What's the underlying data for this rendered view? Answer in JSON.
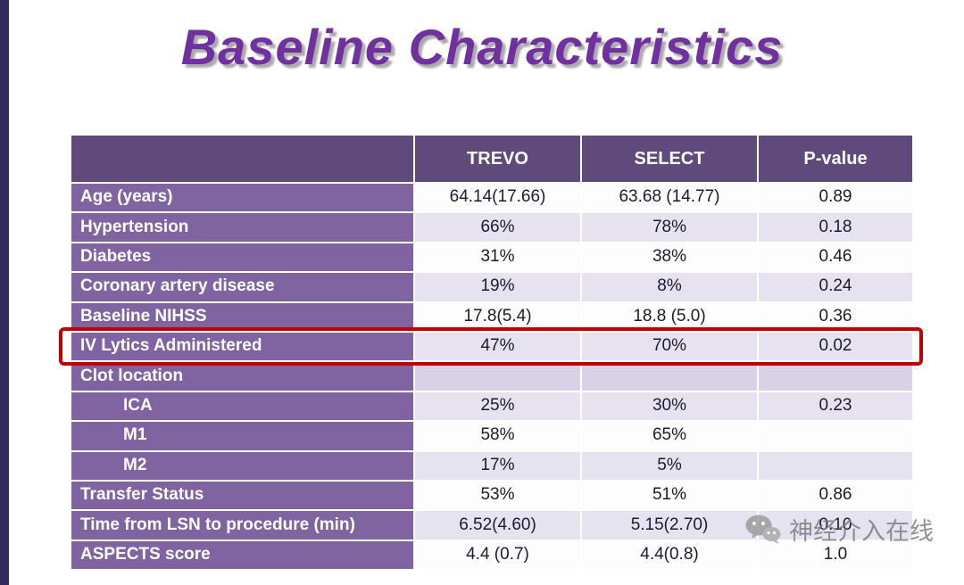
{
  "slide": {
    "title": "Baseline Characteristics"
  },
  "colors": {
    "title": "#7030a0",
    "header_bg": "#604a7b",
    "label_column_bg": "#8064a2",
    "band_row_bg": "#e7e2ef",
    "shaded_row_bg": "#d9d2e6",
    "highlight_border": "#c00000",
    "left_bar": "#352a5e"
  },
  "table": {
    "columns": [
      "",
      "TREVO",
      "SELECT",
      "P-value"
    ],
    "rows": [
      {
        "label": "Age (years)",
        "trevo": "64.14(17.66)",
        "select": "63.68 (14.77)",
        "p": "0.89"
      },
      {
        "label": "Hypertension",
        "trevo": "66%",
        "select": "78%",
        "p": "0.18"
      },
      {
        "label": "Diabetes",
        "trevo": "31%",
        "select": "38%",
        "p": "0.46"
      },
      {
        "label": "Coronary artery disease",
        "trevo": "19%",
        "select": "8%",
        "p": "0.24"
      },
      {
        "label": "Baseline NIHSS",
        "trevo": "17.8(5.4)",
        "select": "18.8 (5.0)",
        "p": "0.36"
      },
      {
        "label": "IV Lytics Administered",
        "trevo": "47%",
        "select": "70%",
        "p": "0.02",
        "highlight": true
      },
      {
        "label": "Clot location",
        "trevo": "",
        "select": "",
        "p": "",
        "shaded": true
      },
      {
        "label": "ICA",
        "trevo": "25%",
        "select": "30%",
        "p": "0.23",
        "indent": true
      },
      {
        "label": "M1",
        "trevo": "58%",
        "select": "65%",
        "p": "",
        "indent": true
      },
      {
        "label": "M2",
        "trevo": "17%",
        "select": "5%",
        "p": "",
        "indent": true
      },
      {
        "label": "Transfer Status",
        "trevo": "53%",
        "select": "51%",
        "p": "0.86"
      },
      {
        "label": "Time from LSN to procedure (min)",
        "trevo": "6.52(4.60)",
        "select": "5.15(2.70)",
        "p": "0.10"
      },
      {
        "label": "ASPECTS score",
        "trevo": "4.4 (0.7)",
        "select": "4.4(0.8)",
        "p": "1.0"
      }
    ]
  },
  "watermark": {
    "text": "神经介入在线",
    "icon": "wechat-icon"
  }
}
